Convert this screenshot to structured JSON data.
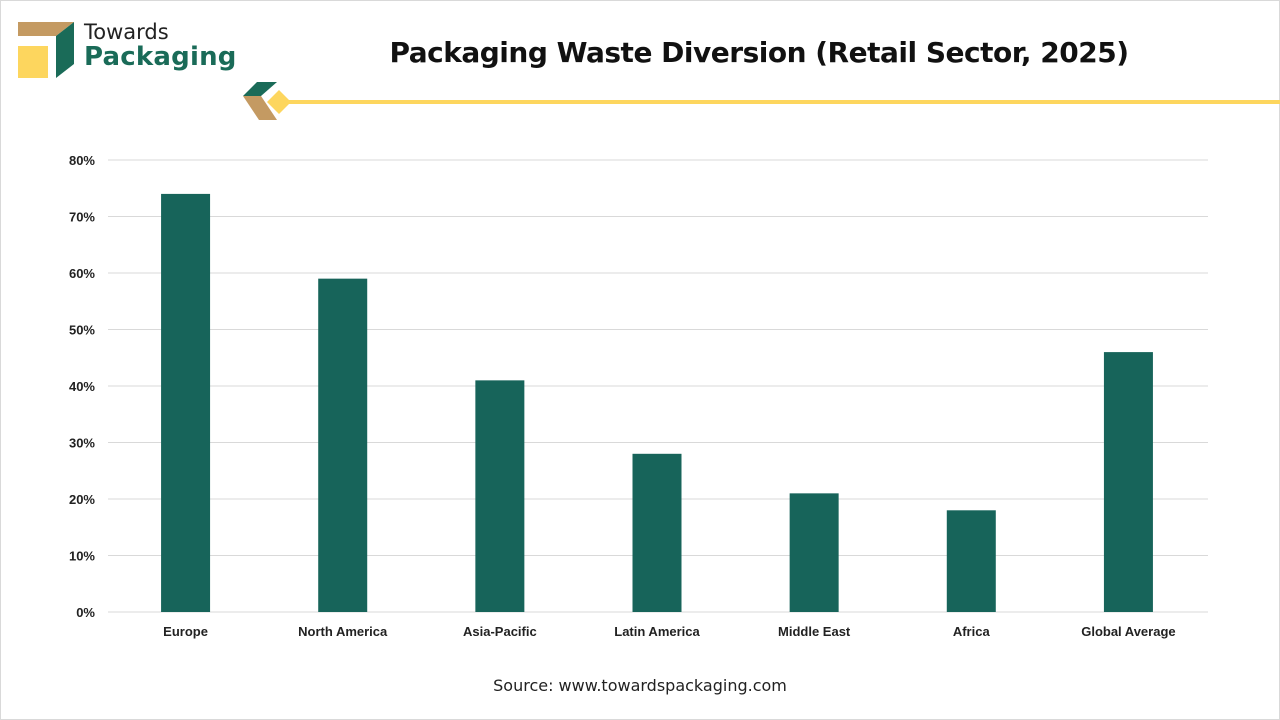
{
  "brand": {
    "line1": "Towards",
    "line2": "Packaging",
    "colors": {
      "green": "#1a6b58",
      "tan": "#c49a62",
      "yellow": "#fdd65e"
    }
  },
  "source": "Source: www.towardspackaging.com",
  "chart_data": {
    "type": "bar",
    "title": "Packaging Waste Diversion (Retail Sector, 2025)",
    "xlabel": "",
    "ylabel": "",
    "categories": [
      "Europe",
      "North America",
      "Asia-Pacific",
      "Latin America",
      "Middle East",
      "Africa",
      "Global Average"
    ],
    "values": [
      74,
      59,
      41,
      28,
      21,
      18,
      46
    ],
    "unit": "%",
    "ylim": [
      0,
      80
    ],
    "yticks": [
      0,
      10,
      20,
      30,
      40,
      50,
      60,
      70,
      80
    ],
    "ytick_labels": [
      "0%",
      "10%",
      "20%",
      "30%",
      "40%",
      "50%",
      "60%",
      "70%",
      "80%"
    ],
    "grid": true,
    "legend": "none",
    "bar_color": "#17645a"
  }
}
